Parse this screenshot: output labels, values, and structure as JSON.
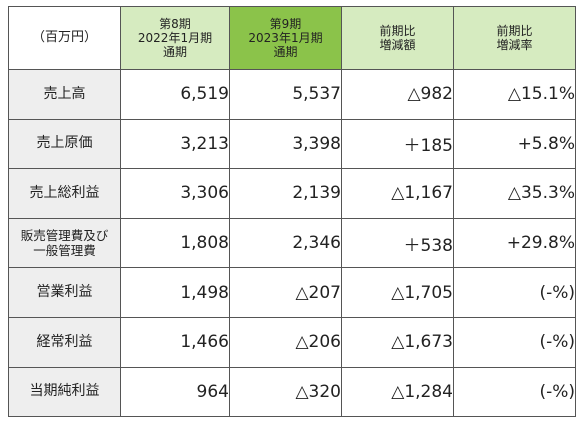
{
  "table": {
    "header": {
      "unit": "（百万円）",
      "prev": [
        "第8期",
        "2022年1月期",
        "通期"
      ],
      "curr": [
        "第9期",
        "2023年1月期",
        "通期"
      ],
      "diff": [
        "前期比",
        "増減額"
      ],
      "rate": [
        "前期比",
        "増減率"
      ]
    },
    "rows": [
      {
        "label": [
          "売上高"
        ],
        "prev": "6,519",
        "curr": "5,537",
        "diff": "△982",
        "rate": "△15.1%"
      },
      {
        "label": [
          "売上原価"
        ],
        "prev": "3,213",
        "curr": "3,398",
        "diff": "＋185",
        "rate": "+5.8%"
      },
      {
        "label": [
          "売上総利益"
        ],
        "prev": "3,306",
        "curr": "2,139",
        "diff": "△1,167",
        "rate": "△35.3%"
      },
      {
        "label": [
          "販売管理費及び",
          "一般管理費"
        ],
        "prev": "1,808",
        "curr": "2,346",
        "diff": "＋538",
        "rate": "+29.8%"
      },
      {
        "label": [
          "営業利益"
        ],
        "prev": "1,498",
        "curr": "△207",
        "diff": "△1,705",
        "rate": "(-%)"
      },
      {
        "label": [
          "経常利益"
        ],
        "prev": "1,466",
        "curr": "△206",
        "diff": "△1,673",
        "rate": "(-%)"
      },
      {
        "label": [
          "当期純利益"
        ],
        "prev": "964",
        "curr": "△320",
        "diff": "△1,284",
        "rate": "(-%)"
      }
    ]
  },
  "colors": {
    "header_light_green": "#d6ebc0",
    "header_dark_green": "#8bc34a",
    "row_label_gray": "#eeeeee",
    "border": "#555555"
  }
}
